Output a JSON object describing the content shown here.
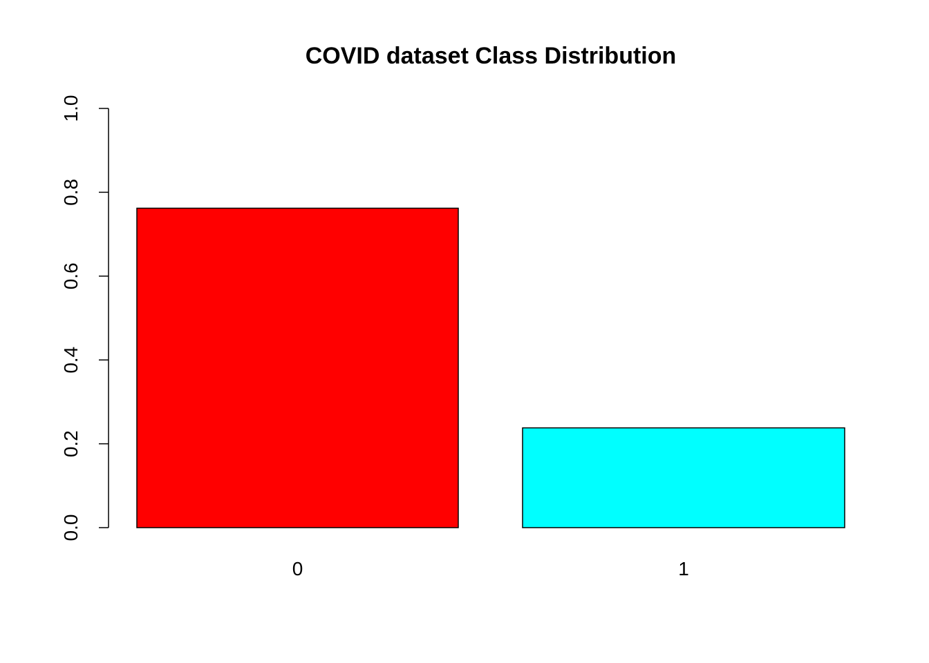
{
  "chart_data": {
    "type": "bar",
    "title": "COVID dataset Class Distribution",
    "xlabel": "",
    "ylabel": "",
    "categories": [
      "0",
      "1"
    ],
    "values": [
      0.762,
      0.238
    ],
    "colors": [
      "#ff0000",
      "#00ffff"
    ],
    "ylim": [
      0,
      1
    ],
    "y_ticks": [
      0,
      0.2,
      0.4,
      0.6,
      0.8,
      1
    ],
    "y_tick_labels": [
      "0.0",
      "0.2",
      "0.4",
      "0.6",
      "0.8",
      "1.0"
    ],
    "grid": false,
    "legend": "none"
  }
}
